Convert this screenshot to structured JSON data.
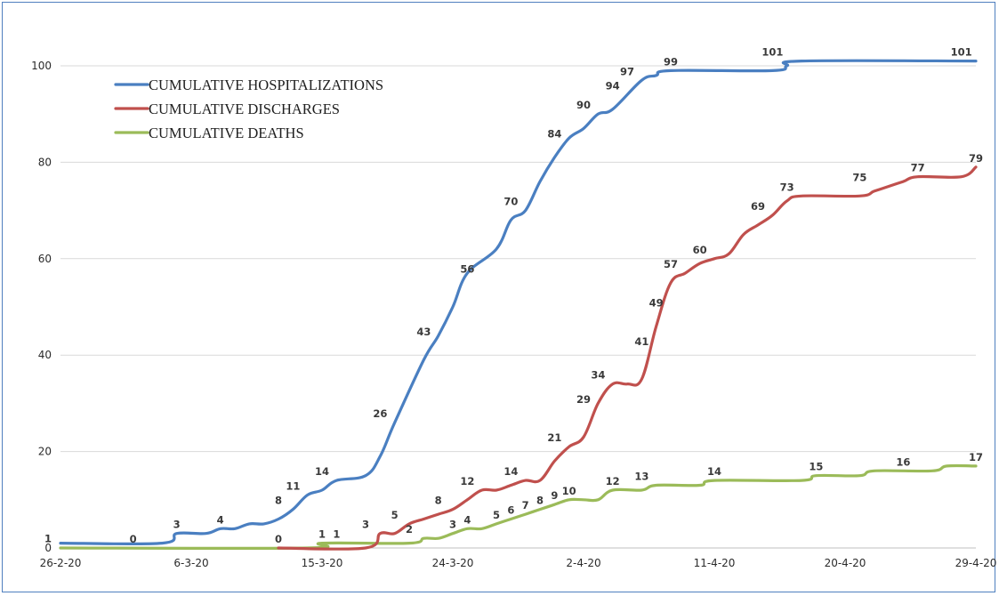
{
  "chart_data": {
    "type": "line",
    "title": "",
    "xlabel": "",
    "ylabel": "",
    "ylim": [
      0,
      100
    ],
    "yticks": [
      "0",
      "20",
      "40",
      "60",
      "80",
      "100"
    ],
    "x_tick_labels": [
      "26-2-20",
      "6-3-20",
      "15-3-20",
      "24-3-20",
      "2-4-20",
      "11-4-20",
      "20-4-20",
      "29-4-20"
    ],
    "x_range": [
      "26-2-20",
      "29-4-20"
    ],
    "grid": true,
    "legend_placement": "top-left",
    "series": [
      {
        "name": "CUMULATIVE HOSPITALIZATIONS",
        "color": "#4a7fc1",
        "points": [
          {
            "x": "26-2-20",
            "y": 1
          },
          {
            "x": "4-3-20",
            "y": 1
          },
          {
            "x": "5-3-20",
            "y": 3
          },
          {
            "x": "7-3-20",
            "y": 3
          },
          {
            "x": "8-3-20",
            "y": 4
          },
          {
            "x": "9-3-20",
            "y": 4
          },
          {
            "x": "10-3-20",
            "y": 5
          },
          {
            "x": "11-3-20",
            "y": 5
          },
          {
            "x": "12-3-20",
            "y": 6
          },
          {
            "x": "13-3-20",
            "y": 8
          },
          {
            "x": "14-3-20",
            "y": 11
          },
          {
            "x": "15-3-20",
            "y": 12
          },
          {
            "x": "16-3-20",
            "y": 14
          },
          {
            "x": "18-3-20",
            "y": 15
          },
          {
            "x": "19-3-20",
            "y": 19
          },
          {
            "x": "20-3-20",
            "y": 26
          },
          {
            "x": "22-3-20",
            "y": 39
          },
          {
            "x": "23-3-20",
            "y": 44
          },
          {
            "x": "24-3-20",
            "y": 50
          },
          {
            "x": "25-3-20",
            "y": 57
          },
          {
            "x": "27-3-20",
            "y": 62
          },
          {
            "x": "28-3-20",
            "y": 68
          },
          {
            "x": "29-3-20",
            "y": 70
          },
          {
            "x": "30-3-20",
            "y": 76
          },
          {
            "x": "31-3-20",
            "y": 81
          },
          {
            "x": "1-4-20",
            "y": 85
          },
          {
            "x": "2-4-20",
            "y": 87
          },
          {
            "x": "3-4-20",
            "y": 90
          },
          {
            "x": "4-4-20",
            "y": 91
          },
          {
            "x": "6-4-20",
            "y": 97
          },
          {
            "x": "7-4-20",
            "y": 98
          },
          {
            "x": "8-4-20",
            "y": 99
          },
          {
            "x": "15-4-20",
            "y": 99
          },
          {
            "x": "16-4-20",
            "y": 100
          },
          {
            "x": "17-4-20",
            "y": 101
          },
          {
            "x": "29-4-20",
            "y": 101
          }
        ],
        "data_labels": [
          {
            "x": "2-3-20",
            "y": 0,
            "label": "0"
          },
          {
            "x": "5-3-20",
            "y": 3,
            "label": "3"
          },
          {
            "x": "8-3-20",
            "y": 4,
            "label": "4"
          },
          {
            "x": "12-3-20",
            "y": 8,
            "label": "8"
          },
          {
            "x": "13-3-20",
            "y": 11,
            "label": "11"
          },
          {
            "x": "15-3-20",
            "y": 14,
            "label": "14"
          },
          {
            "x": "19-3-20",
            "y": 26,
            "label": "26"
          },
          {
            "x": "22-3-20",
            "y": 43,
            "label": "43"
          },
          {
            "x": "25-3-20",
            "y": 56,
            "label": "56"
          },
          {
            "x": "28-3-20",
            "y": 70,
            "label": "70"
          },
          {
            "x": "31-3-20",
            "y": 84,
            "label": "84"
          },
          {
            "x": "2-4-20",
            "y": 90,
            "label": "90"
          },
          {
            "x": "4-4-20",
            "y": 94,
            "label": "94"
          },
          {
            "x": "5-4-20",
            "y": 97,
            "label": "97"
          },
          {
            "x": "8-4-20",
            "y": 99,
            "label": "99"
          },
          {
            "x": "15-4-20",
            "y": 101,
            "label": "101"
          },
          {
            "x": "28-4-20",
            "y": 101,
            "label": "101"
          }
        ]
      },
      {
        "name": "CUMULATIVE DISCHARGES",
        "color": "#c0504d",
        "points": [
          {
            "x": "12-3-20",
            "y": 0
          },
          {
            "x": "18-3-20",
            "y": 0
          },
          {
            "x": "19-3-20",
            "y": 3
          },
          {
            "x": "20-3-20",
            "y": 3
          },
          {
            "x": "21-3-20",
            "y": 5
          },
          {
            "x": "22-3-20",
            "y": 6
          },
          {
            "x": "23-3-20",
            "y": 7
          },
          {
            "x": "24-3-20",
            "y": 8
          },
          {
            "x": "25-3-20",
            "y": 10
          },
          {
            "x": "26-3-20",
            "y": 12
          },
          {
            "x": "27-3-20",
            "y": 12
          },
          {
            "x": "28-3-20",
            "y": 13
          },
          {
            "x": "29-3-20",
            "y": 14
          },
          {
            "x": "30-3-20",
            "y": 14
          },
          {
            "x": "31-3-20",
            "y": 18
          },
          {
            "x": "1-4-20",
            "y": 21
          },
          {
            "x": "2-4-20",
            "y": 23
          },
          {
            "x": "3-4-20",
            "y": 30
          },
          {
            "x": "4-4-20",
            "y": 34
          },
          {
            "x": "5-4-20",
            "y": 34
          },
          {
            "x": "6-4-20",
            "y": 35
          },
          {
            "x": "7-4-20",
            "y": 46
          },
          {
            "x": "8-4-20",
            "y": 55
          },
          {
            "x": "9-4-20",
            "y": 57
          },
          {
            "x": "10-4-20",
            "y": 59
          },
          {
            "x": "11-4-20",
            "y": 60
          },
          {
            "x": "12-4-20",
            "y": 61
          },
          {
            "x": "13-4-20",
            "y": 65
          },
          {
            "x": "14-4-20",
            "y": 67
          },
          {
            "x": "15-4-20",
            "y": 69
          },
          {
            "x": "16-4-20",
            "y": 72
          },
          {
            "x": "17-4-20",
            "y": 73
          },
          {
            "x": "21-4-20",
            "y": 73
          },
          {
            "x": "22-4-20",
            "y": 74
          },
          {
            "x": "23-4-20",
            "y": 75
          },
          {
            "x": "24-4-20",
            "y": 76
          },
          {
            "x": "25-4-20",
            "y": 77
          },
          {
            "x": "28-4-20",
            "y": 77
          },
          {
            "x": "29-4-20",
            "y": 79
          }
        ],
        "data_labels": [
          {
            "x": "12-3-20",
            "y": 0,
            "label": "0"
          },
          {
            "x": "16-3-20",
            "y": 1,
            "label": "1"
          },
          {
            "x": "18-3-20",
            "y": 3,
            "label": "3"
          },
          {
            "x": "20-3-20",
            "y": 5,
            "label": "5"
          },
          {
            "x": "23-3-20",
            "y": 8,
            "label": "8"
          },
          {
            "x": "25-3-20",
            "y": 12,
            "label": "12"
          },
          {
            "x": "28-3-20",
            "y": 14,
            "label": "14"
          },
          {
            "x": "31-3-20",
            "y": 21,
            "label": "21"
          },
          {
            "x": "2-4-20",
            "y": 29,
            "label": "29"
          },
          {
            "x": "3-4-20",
            "y": 34,
            "label": "34"
          },
          {
            "x": "6-4-20",
            "y": 41,
            "label": "41"
          },
          {
            "x": "7-4-20",
            "y": 49,
            "label": "49"
          },
          {
            "x": "8-4-20",
            "y": 57,
            "label": "57"
          },
          {
            "x": "10-4-20",
            "y": 60,
            "label": "60"
          },
          {
            "x": "14-4-20",
            "y": 69,
            "label": "69"
          },
          {
            "x": "16-4-20",
            "y": 73,
            "label": "73"
          },
          {
            "x": "21-4-20",
            "y": 75,
            "label": "75"
          },
          {
            "x": "25-4-20",
            "y": 77,
            "label": "77"
          },
          {
            "x": "29-4-20",
            "y": 79,
            "label": "79"
          }
        ]
      },
      {
        "name": "CUMULATIVE DEATHS",
        "color": "#9bbb59",
        "points": [
          {
            "x": "26-2-20",
            "y": 0
          },
          {
            "x": "14-3-20",
            "y": 0
          },
          {
            "x": "15-3-20",
            "y": 1
          },
          {
            "x": "21-3-20",
            "y": 1
          },
          {
            "x": "22-3-20",
            "y": 2
          },
          {
            "x": "23-3-20",
            "y": 2
          },
          {
            "x": "24-3-20",
            "y": 3
          },
          {
            "x": "25-3-20",
            "y": 4
          },
          {
            "x": "26-3-20",
            "y": 4
          },
          {
            "x": "27-3-20",
            "y": 5
          },
          {
            "x": "28-3-20",
            "y": 6
          },
          {
            "x": "29-3-20",
            "y": 7
          },
          {
            "x": "30-3-20",
            "y": 8
          },
          {
            "x": "31-3-20",
            "y": 9
          },
          {
            "x": "1-4-20",
            "y": 10
          },
          {
            "x": "2-4-20",
            "y": 10
          },
          {
            "x": "3-4-20",
            "y": 10
          },
          {
            "x": "4-4-20",
            "y": 12
          },
          {
            "x": "6-4-20",
            "y": 12
          },
          {
            "x": "7-4-20",
            "y": 13
          },
          {
            "x": "10-4-20",
            "y": 13
          },
          {
            "x": "11-4-20",
            "y": 14
          },
          {
            "x": "17-4-20",
            "y": 14
          },
          {
            "x": "18-4-20",
            "y": 15
          },
          {
            "x": "21-4-20",
            "y": 15
          },
          {
            "x": "22-4-20",
            "y": 16
          },
          {
            "x": "26-4-20",
            "y": 16
          },
          {
            "x": "27-4-20",
            "y": 17
          },
          {
            "x": "29-4-20",
            "y": 17
          }
        ],
        "data_labels": [
          {
            "x": "15-3-20",
            "y": 1,
            "label": "1"
          },
          {
            "x": "21-3-20",
            "y": 2,
            "label": "2"
          },
          {
            "x": "24-3-20",
            "y": 3,
            "label": "3"
          },
          {
            "x": "25-3-20",
            "y": 4,
            "label": "4"
          },
          {
            "x": "27-3-20",
            "y": 5,
            "label": "5"
          },
          {
            "x": "28-3-20",
            "y": 6,
            "label": "6"
          },
          {
            "x": "29-3-20",
            "y": 7,
            "label": "7"
          },
          {
            "x": "30-3-20",
            "y": 8,
            "label": "8"
          },
          {
            "x": "31-3-20",
            "y": 9,
            "label": "9"
          },
          {
            "x": "1-4-20",
            "y": 10,
            "label": "10"
          },
          {
            "x": "4-4-20",
            "y": 12,
            "label": "12"
          },
          {
            "x": "6-4-20",
            "y": 13,
            "label": "13"
          },
          {
            "x": "11-4-20",
            "y": 14,
            "label": "14"
          },
          {
            "x": "18-4-20",
            "y": 15,
            "label": "15"
          },
          {
            "x": "24-4-20",
            "y": 16,
            "label": "16"
          },
          {
            "x": "29-4-20",
            "y": 17,
            "label": "17"
          }
        ]
      }
    ],
    "extra_labels": [
      {
        "x": "26-2-20",
        "y": 1,
        "label": "1"
      }
    ]
  }
}
